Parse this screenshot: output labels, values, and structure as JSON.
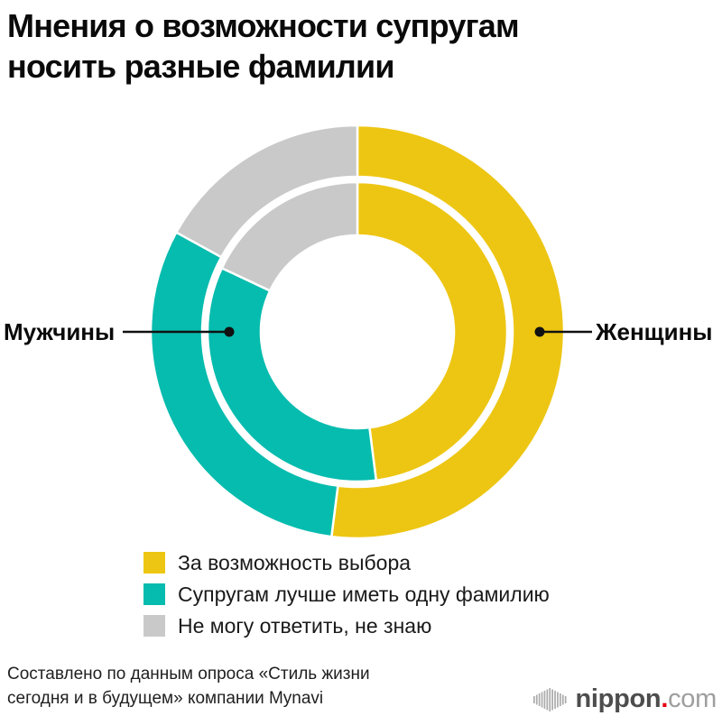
{
  "title": {
    "line1": "Мнения о возможности супругам",
    "line2": "носить разные фамилии"
  },
  "chart_data": {
    "type": "donut",
    "variant": "nested-two-ring",
    "title": "Мнения о возможности супругам носить разные фамилии",
    "units": "%",
    "start_angle_deg": 0,
    "direction": "clockwise",
    "segments": [
      {
        "id": "for-choice",
        "label": "За возможность выбора",
        "color": "#edc613"
      },
      {
        "id": "one-surname",
        "label": "Супругам лучше иметь одну фамилию",
        "color": "#06bcae"
      },
      {
        "id": "dont-know",
        "label": "Не могу ответить, не знаю",
        "color": "#c9c9c9"
      }
    ],
    "rings": [
      {
        "id": "women",
        "label": "Женщины",
        "position": "outer",
        "values": [
          52,
          31,
          17
        ]
      },
      {
        "id": "men",
        "label": "Мужчины",
        "position": "inner",
        "values": [
          48,
          34,
          18
        ]
      }
    ],
    "legend_position": "bottom-left"
  },
  "callouts": {
    "left_label": "Мужчины",
    "right_label": "Женщины"
  },
  "source": {
    "line1": "Составлено по данным опроса «Стиль жизни",
    "line2": "сегодня и в будущем» компании Mynavi"
  },
  "logo": {
    "icon": "soundwave-bars-icon",
    "brand": "nippon",
    "dot": ".",
    "tld": "com",
    "brand_color": "#4d4d4d",
    "dot_color": "#e60012",
    "tld_color": "#9e9e9e"
  }
}
